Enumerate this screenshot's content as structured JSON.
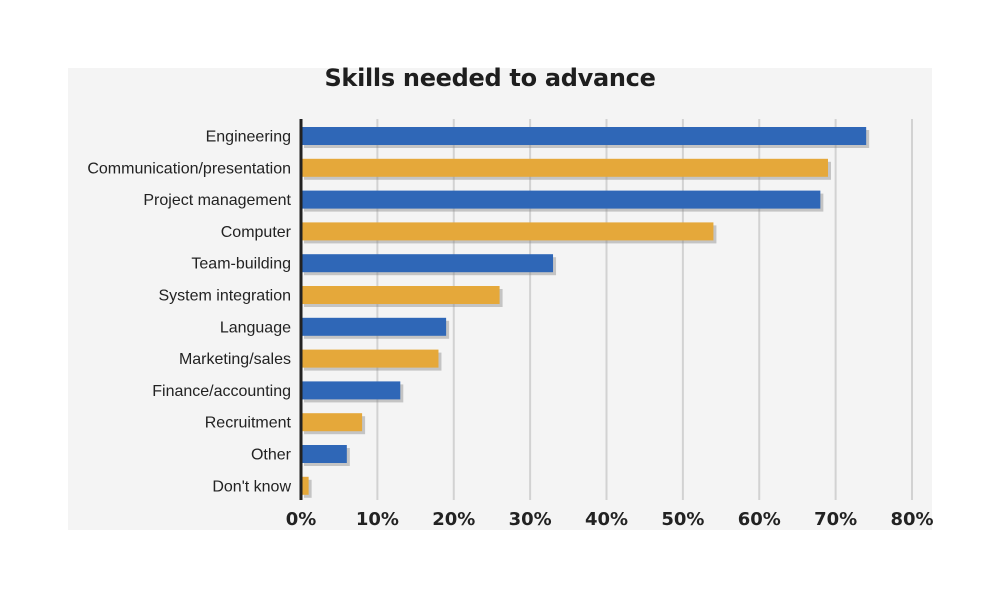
{
  "chart_data": {
    "type": "bar",
    "orientation": "horizontal",
    "title": "Skills needed to advance",
    "xlabel": "",
    "ylabel": "",
    "categories": [
      "Engineering",
      "Communication/presentation",
      "Project management",
      "Computer",
      "Team-building",
      "System integration",
      "Language",
      "Marketing/sales",
      "Finance/accounting",
      "Recruitment",
      "Other",
      "Don't know"
    ],
    "values": [
      74,
      69,
      68,
      54,
      33,
      26,
      19,
      18,
      13,
      8,
      6,
      1
    ],
    "xlim": [
      0,
      80
    ],
    "x_ticks": [
      "0%",
      "10%",
      "20%",
      "30%",
      "40%",
      "50%",
      "60%",
      "70%",
      "80%"
    ],
    "grid": true,
    "colors": {
      "bar_primary": "#2f67b7",
      "bar_secondary": "#e5a83a",
      "grid": "#d2d2d2",
      "axis": "#222222",
      "panel_background": "#f4f4f4"
    }
  }
}
